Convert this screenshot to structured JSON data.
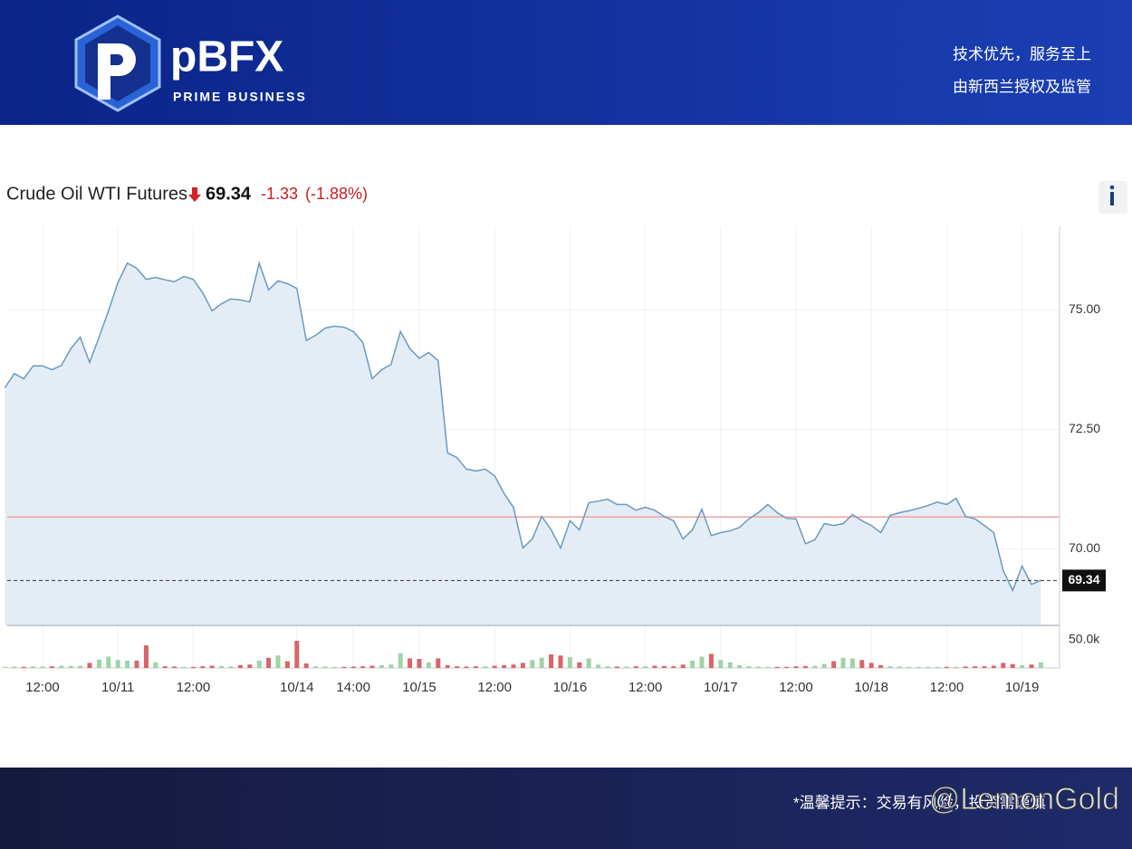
{
  "header": {
    "logo": "pBFX",
    "logo_subtitle": "PRIME BUSINESS",
    "slogans": [
      "技术优先，服务至上",
      "由新西兰授权及监管"
    ]
  },
  "chart_data": {
    "type": "line",
    "title": "Crude Oil WTI Futures",
    "quote": {
      "last": 69.34,
      "change": -1.33,
      "change_pct": {
        "value": -1.88,
        "label": "(-1.88%)"
      }
    },
    "prev_close": 70.67,
    "categories": [
      null,
      null,
      null,
      null,
      "12:00",
      null,
      null,
      null,
      null,
      null,
      null,
      null,
      "10/11",
      null,
      null,
      null,
      null,
      null,
      null,
      null,
      "12:00",
      null,
      null,
      null,
      null,
      null,
      null,
      null,
      null,
      null,
      null,
      "10/14",
      null,
      null,
      null,
      null,
      null,
      "14:00",
      null,
      null,
      null,
      null,
      null,
      null,
      "10/15",
      null,
      null,
      null,
      null,
      null,
      null,
      null,
      "12:00",
      null,
      null,
      null,
      null,
      null,
      null,
      null,
      "10/16",
      null,
      null,
      null,
      null,
      null,
      null,
      null,
      "12:00",
      null,
      null,
      null,
      null,
      null,
      null,
      null,
      "10/17",
      null,
      null,
      null,
      null,
      null,
      null,
      null,
      "12:00",
      null,
      null,
      null,
      null,
      null,
      null,
      null,
      "10/18",
      null,
      null,
      null,
      null,
      null,
      null,
      null,
      "12:00",
      null,
      null,
      null,
      null,
      null,
      null,
      null,
      "10/19",
      null,
      null
    ],
    "values": [
      73.37,
      73.67,
      73.56,
      73.83,
      73.83,
      73.75,
      73.84,
      74.19,
      74.43,
      73.9,
      74.43,
      74.98,
      75.57,
      75.98,
      75.87,
      75.64,
      75.68,
      75.63,
      75.59,
      75.7,
      75.64,
      75.36,
      74.98,
      75.13,
      75.23,
      75.21,
      75.17,
      75.98,
      75.42,
      75.61,
      75.55,
      75.45,
      74.36,
      74.47,
      74.62,
      74.66,
      74.64,
      74.55,
      74.32,
      73.56,
      73.75,
      73.86,
      74.55,
      74.19,
      73.99,
      74.11,
      73.94,
      72.01,
      71.91,
      71.67,
      71.63,
      71.67,
      71.53,
      71.16,
      70.87,
      70.02,
      70.21,
      70.68,
      70.4,
      70.02,
      70.59,
      70.4,
      70.97,
      71.0,
      71.04,
      70.93,
      70.93,
      70.81,
      70.87,
      70.81,
      70.68,
      70.59,
      70.21,
      70.4,
      70.83,
      70.28,
      70.34,
      70.38,
      70.45,
      70.63,
      70.76,
      70.93,
      70.76,
      70.64,
      70.63,
      70.11,
      70.19,
      70.53,
      70.49,
      70.53,
      70.72,
      70.59,
      70.49,
      70.34,
      70.7,
      70.76,
      70.8,
      70.85,
      70.91,
      70.98,
      70.93,
      71.06,
      70.68,
      70.63,
      70.49,
      70.34,
      69.55,
      69.13,
      69.64,
      69.26,
      69.34
    ],
    "ylim": [
      68.4,
      76.75
    ],
    "yticks": [
      {
        "value": 70,
        "label": "70.00"
      },
      {
        "value": 72.5,
        "label": "72.50"
      },
      {
        "value": 75,
        "label": "75.00"
      }
    ],
    "grid": true,
    "line_color": "#6b9ac0",
    "area_color": "#e4edf5",
    "prev_close_color": "#f2a0a0",
    "volume": {
      "values": [
        2000,
        2500,
        2000,
        3000,
        2500,
        3000,
        4000,
        3500,
        4000,
        9000,
        15000,
        20000,
        14000,
        13000,
        13000,
        40000,
        10000,
        3000,
        2500,
        2000,
        2000,
        3000,
        4000,
        3500,
        3000,
        5000,
        6000,
        13000,
        18000,
        22000,
        12000,
        48000,
        8000,
        3000,
        2500,
        2000,
        2000,
        2500,
        3000,
        4000,
        5000,
        6000,
        26000,
        17000,
        16000,
        10000,
        17000,
        5000,
        3000,
        2500,
        3000,
        3000,
        4000,
        5000,
        6000,
        9000,
        14000,
        18000,
        24000,
        22000,
        19000,
        10000,
        17000,
        6000,
        3000,
        2500,
        2500,
        3000,
        3000,
        4000,
        3500,
        3000,
        6000,
        13000,
        20000,
        25000,
        14000,
        10000,
        5000,
        3000,
        2500,
        2000,
        2000,
        2000,
        3000,
        3500,
        4000,
        7000,
        12000,
        18000,
        17000,
        14000,
        9000,
        5000,
        3000,
        2500,
        2000,
        2000,
        2000,
        2000,
        2000,
        2000,
        2500,
        3000,
        3000,
        4000,
        9000,
        7000,
        5000,
        6000,
        10000
      ],
      "ylim": [
        0,
        72000
      ],
      "yticks": [
        {
          "value": 50000,
          "label": "50.0k"
        }
      ],
      "up_color": "#9fd3a8",
      "down_color": "#d9646a"
    }
  },
  "footer": {
    "notice": "*温馨提示：交易有风险，投资需谨慎",
    "watermark": "@LemonGold"
  }
}
